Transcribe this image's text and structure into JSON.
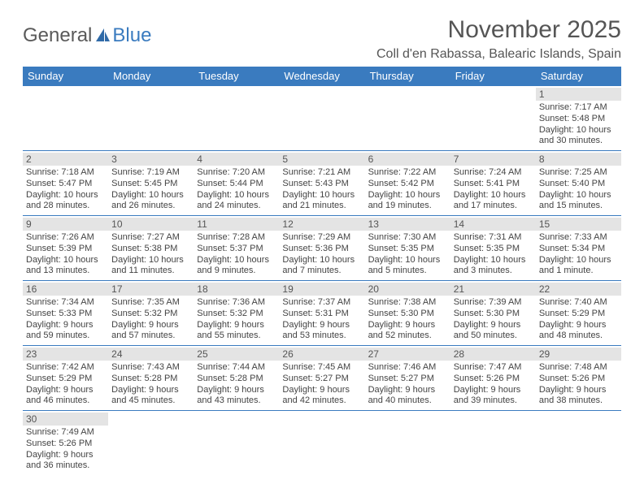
{
  "brand": {
    "part1": "General",
    "part2": "Blue"
  },
  "title": "November 2025",
  "location": "Coll d'en Rabassa, Balearic Islands, Spain",
  "dayHeaders": [
    "Sunday",
    "Monday",
    "Tuesday",
    "Wednesday",
    "Thursday",
    "Friday",
    "Saturday"
  ],
  "colors": {
    "headerBg": "#3a7bbf",
    "headerText": "#ffffff",
    "dayNumBg": "#e4e4e4",
    "rowBorder": "#3a7bbf",
    "bodyText": "#444444",
    "titleText": "#555555"
  },
  "weeks": [
    [
      {
        "empty": true
      },
      {
        "empty": true
      },
      {
        "empty": true
      },
      {
        "empty": true
      },
      {
        "empty": true
      },
      {
        "empty": true
      },
      {
        "n": "1",
        "sunrise": "Sunrise: 7:17 AM",
        "sunset": "Sunset: 5:48 PM",
        "daylight1": "Daylight: 10 hours",
        "daylight2": "and 30 minutes."
      }
    ],
    [
      {
        "n": "2",
        "sunrise": "Sunrise: 7:18 AM",
        "sunset": "Sunset: 5:47 PM",
        "daylight1": "Daylight: 10 hours",
        "daylight2": "and 28 minutes."
      },
      {
        "n": "3",
        "sunrise": "Sunrise: 7:19 AM",
        "sunset": "Sunset: 5:45 PM",
        "daylight1": "Daylight: 10 hours",
        "daylight2": "and 26 minutes."
      },
      {
        "n": "4",
        "sunrise": "Sunrise: 7:20 AM",
        "sunset": "Sunset: 5:44 PM",
        "daylight1": "Daylight: 10 hours",
        "daylight2": "and 24 minutes."
      },
      {
        "n": "5",
        "sunrise": "Sunrise: 7:21 AM",
        "sunset": "Sunset: 5:43 PM",
        "daylight1": "Daylight: 10 hours",
        "daylight2": "and 21 minutes."
      },
      {
        "n": "6",
        "sunrise": "Sunrise: 7:22 AM",
        "sunset": "Sunset: 5:42 PM",
        "daylight1": "Daylight: 10 hours",
        "daylight2": "and 19 minutes."
      },
      {
        "n": "7",
        "sunrise": "Sunrise: 7:24 AM",
        "sunset": "Sunset: 5:41 PM",
        "daylight1": "Daylight: 10 hours",
        "daylight2": "and 17 minutes."
      },
      {
        "n": "8",
        "sunrise": "Sunrise: 7:25 AM",
        "sunset": "Sunset: 5:40 PM",
        "daylight1": "Daylight: 10 hours",
        "daylight2": "and 15 minutes."
      }
    ],
    [
      {
        "n": "9",
        "sunrise": "Sunrise: 7:26 AM",
        "sunset": "Sunset: 5:39 PM",
        "daylight1": "Daylight: 10 hours",
        "daylight2": "and 13 minutes."
      },
      {
        "n": "10",
        "sunrise": "Sunrise: 7:27 AM",
        "sunset": "Sunset: 5:38 PM",
        "daylight1": "Daylight: 10 hours",
        "daylight2": "and 11 minutes."
      },
      {
        "n": "11",
        "sunrise": "Sunrise: 7:28 AM",
        "sunset": "Sunset: 5:37 PM",
        "daylight1": "Daylight: 10 hours",
        "daylight2": "and 9 minutes."
      },
      {
        "n": "12",
        "sunrise": "Sunrise: 7:29 AM",
        "sunset": "Sunset: 5:36 PM",
        "daylight1": "Daylight: 10 hours",
        "daylight2": "and 7 minutes."
      },
      {
        "n": "13",
        "sunrise": "Sunrise: 7:30 AM",
        "sunset": "Sunset: 5:35 PM",
        "daylight1": "Daylight: 10 hours",
        "daylight2": "and 5 minutes."
      },
      {
        "n": "14",
        "sunrise": "Sunrise: 7:31 AM",
        "sunset": "Sunset: 5:35 PM",
        "daylight1": "Daylight: 10 hours",
        "daylight2": "and 3 minutes."
      },
      {
        "n": "15",
        "sunrise": "Sunrise: 7:33 AM",
        "sunset": "Sunset: 5:34 PM",
        "daylight1": "Daylight: 10 hours",
        "daylight2": "and 1 minute."
      }
    ],
    [
      {
        "n": "16",
        "sunrise": "Sunrise: 7:34 AM",
        "sunset": "Sunset: 5:33 PM",
        "daylight1": "Daylight: 9 hours",
        "daylight2": "and 59 minutes."
      },
      {
        "n": "17",
        "sunrise": "Sunrise: 7:35 AM",
        "sunset": "Sunset: 5:32 PM",
        "daylight1": "Daylight: 9 hours",
        "daylight2": "and 57 minutes."
      },
      {
        "n": "18",
        "sunrise": "Sunrise: 7:36 AM",
        "sunset": "Sunset: 5:32 PM",
        "daylight1": "Daylight: 9 hours",
        "daylight2": "and 55 minutes."
      },
      {
        "n": "19",
        "sunrise": "Sunrise: 7:37 AM",
        "sunset": "Sunset: 5:31 PM",
        "daylight1": "Daylight: 9 hours",
        "daylight2": "and 53 minutes."
      },
      {
        "n": "20",
        "sunrise": "Sunrise: 7:38 AM",
        "sunset": "Sunset: 5:30 PM",
        "daylight1": "Daylight: 9 hours",
        "daylight2": "and 52 minutes."
      },
      {
        "n": "21",
        "sunrise": "Sunrise: 7:39 AM",
        "sunset": "Sunset: 5:30 PM",
        "daylight1": "Daylight: 9 hours",
        "daylight2": "and 50 minutes."
      },
      {
        "n": "22",
        "sunrise": "Sunrise: 7:40 AM",
        "sunset": "Sunset: 5:29 PM",
        "daylight1": "Daylight: 9 hours",
        "daylight2": "and 48 minutes."
      }
    ],
    [
      {
        "n": "23",
        "sunrise": "Sunrise: 7:42 AM",
        "sunset": "Sunset: 5:29 PM",
        "daylight1": "Daylight: 9 hours",
        "daylight2": "and 46 minutes."
      },
      {
        "n": "24",
        "sunrise": "Sunrise: 7:43 AM",
        "sunset": "Sunset: 5:28 PM",
        "daylight1": "Daylight: 9 hours",
        "daylight2": "and 45 minutes."
      },
      {
        "n": "25",
        "sunrise": "Sunrise: 7:44 AM",
        "sunset": "Sunset: 5:28 PM",
        "daylight1": "Daylight: 9 hours",
        "daylight2": "and 43 minutes."
      },
      {
        "n": "26",
        "sunrise": "Sunrise: 7:45 AM",
        "sunset": "Sunset: 5:27 PM",
        "daylight1": "Daylight: 9 hours",
        "daylight2": "and 42 minutes."
      },
      {
        "n": "27",
        "sunrise": "Sunrise: 7:46 AM",
        "sunset": "Sunset: 5:27 PM",
        "daylight1": "Daylight: 9 hours",
        "daylight2": "and 40 minutes."
      },
      {
        "n": "28",
        "sunrise": "Sunrise: 7:47 AM",
        "sunset": "Sunset: 5:26 PM",
        "daylight1": "Daylight: 9 hours",
        "daylight2": "and 39 minutes."
      },
      {
        "n": "29",
        "sunrise": "Sunrise: 7:48 AM",
        "sunset": "Sunset: 5:26 PM",
        "daylight1": "Daylight: 9 hours",
        "daylight2": "and 38 minutes."
      }
    ],
    [
      {
        "n": "30",
        "sunrise": "Sunrise: 7:49 AM",
        "sunset": "Sunset: 5:26 PM",
        "daylight1": "Daylight: 9 hours",
        "daylight2": "and 36 minutes."
      },
      {
        "empty": true
      },
      {
        "empty": true
      },
      {
        "empty": true
      },
      {
        "empty": true
      },
      {
        "empty": true
      },
      {
        "empty": true
      }
    ]
  ]
}
